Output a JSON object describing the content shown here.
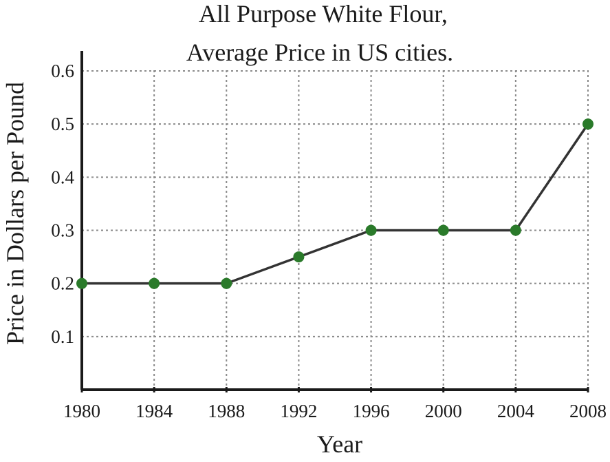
{
  "chart_data": {
    "type": "line",
    "title": [
      "All Purpose White Flour,",
      "Average Price in US cities."
    ],
    "xlabel": "Year",
    "ylabel": "Price in Dollars per Pound",
    "x": [
      1980,
      1984,
      1988,
      1992,
      1996,
      2000,
      2004,
      2008
    ],
    "series": [
      {
        "values": [
          0.2,
          0.2,
          0.2,
          0.25,
          0.3,
          0.3,
          0.3,
          0.5
        ]
      }
    ],
    "xlim": [
      1980,
      2008
    ],
    "ylim": [
      0,
      0.6
    ],
    "xticks": [
      "1980",
      "1984",
      "1988",
      "1992",
      "1996",
      "2000",
      "2004",
      "2008"
    ],
    "yticks": [
      "0.1",
      "0.2",
      "0.3",
      "0.4",
      "0.5",
      "0.6"
    ],
    "grid": true,
    "colors": {
      "line": "#333333",
      "marker": "#2a7a2a"
    }
  }
}
